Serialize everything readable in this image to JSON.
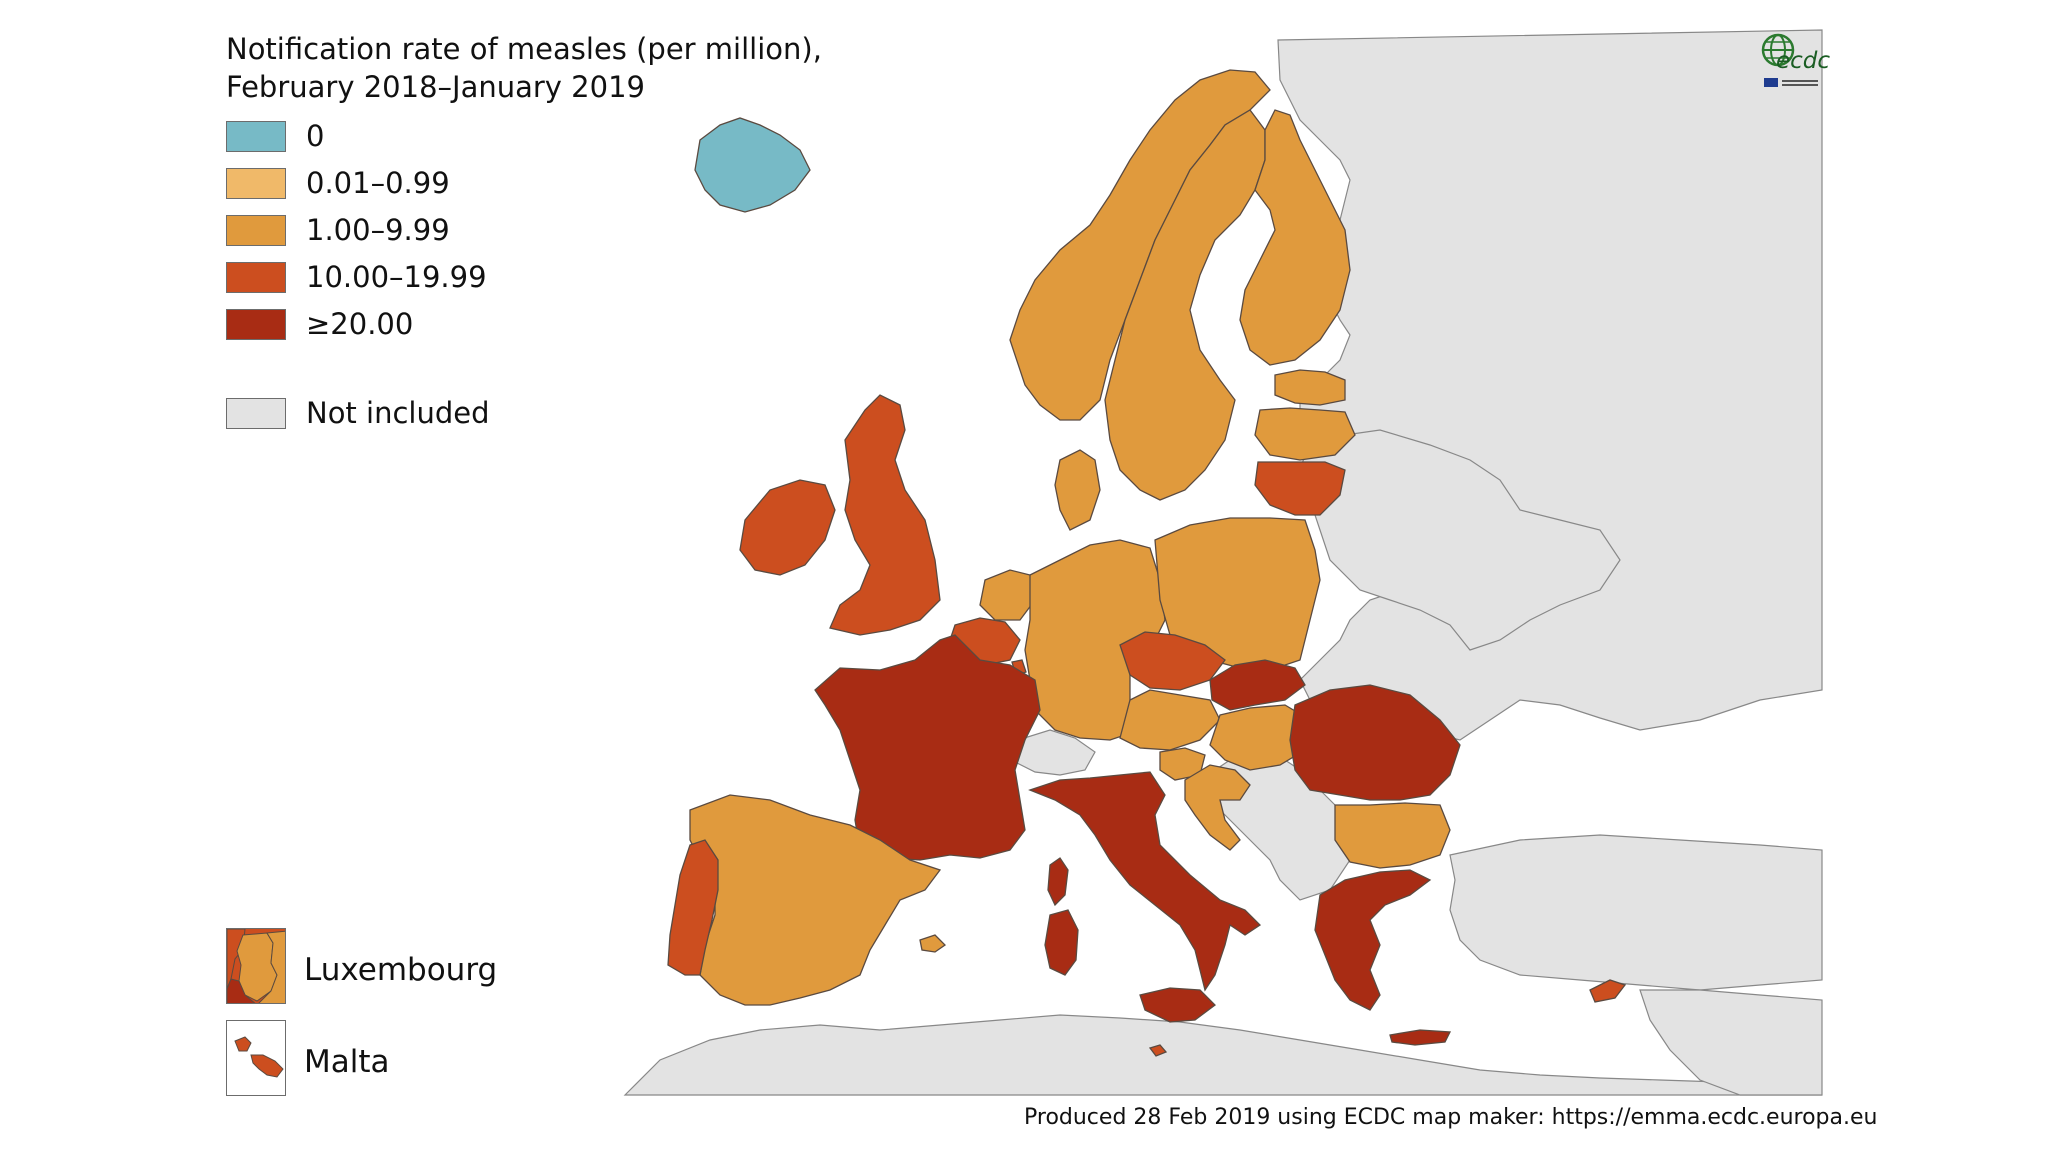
{
  "title": {
    "line1": "Notification rate of measles (per million),",
    "line2": "February 2018–January 2019"
  },
  "legend": [
    {
      "label": "0",
      "color": "#77bac6"
    },
    {
      "label": "0.01–0.99",
      "color": "#f0b969"
    },
    {
      "label": "1.00–9.99",
      "color": "#e09a3d"
    },
    {
      "label": "10.00–19.99",
      "color": "#cc4e1f"
    },
    {
      "label": "≥20.00",
      "color": "#a82c14"
    }
  ],
  "not_included": {
    "label": "Not included",
    "color": "#e3e3e3"
  },
  "insets": {
    "luxembourg": "Luxembourg",
    "malta": "Malta"
  },
  "logo": {
    "text": "ecdc"
  },
  "footer": "Produced 28 Feb 2019 using ECDC map maker: https://emma.ecdc.europa.eu",
  "colors": {
    "sea": "#ffffff",
    "not_included": "#e3e3e3",
    "border": "#555555"
  },
  "countries": {
    "Iceland": "0",
    "Norway": "1.00–9.99",
    "Sweden": "1.00–9.99",
    "Finland": "1.00–9.99",
    "Estonia": "1.00–9.99",
    "Latvia": "1.00–9.99",
    "Lithuania": "10.00–19.99",
    "Denmark": "1.00–9.99",
    "Ireland": "10.00–19.99",
    "United Kingdom": "10.00–19.99",
    "Netherlands": "1.00–9.99",
    "Belgium": "10.00–19.99",
    "Luxembourg": "10.00–19.99",
    "Germany": "1.00–9.99",
    "Poland": "1.00–9.99",
    "Czechia": "10.00–19.99",
    "Slovakia": "≥20.00",
    "Austria": "1.00–9.99",
    "Hungary": "1.00–9.99",
    "Slovenia": "1.00–9.99",
    "Croatia": "1.00–9.99",
    "Romania": "≥20.00",
    "Bulgaria": "1.00–9.99",
    "Greece": "≥20.00",
    "Cyprus": "10.00–19.99",
    "Malta": "10.00–19.99",
    "France": "≥20.00",
    "Italy": "≥20.00",
    "Spain": "1.00–9.99",
    "Portugal": "10.00–19.99"
  }
}
